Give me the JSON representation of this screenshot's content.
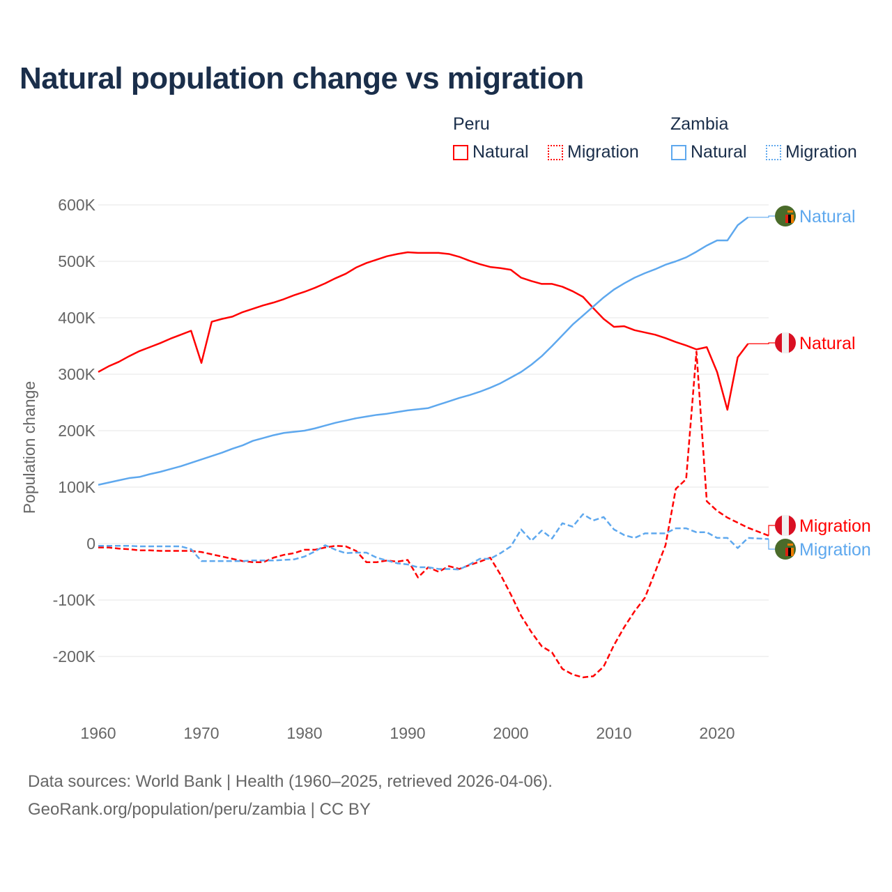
{
  "chart_data": {
    "type": "line",
    "title": "Natural population change vs migration",
    "ylabel": "Population change",
    "xlabel": "",
    "ylim": [
      -300000,
      600000
    ],
    "xlim": [
      1960,
      2025
    ],
    "grid": true,
    "y_ticks": [
      {
        "v": 600000,
        "label": "600K"
      },
      {
        "v": 500000,
        "label": "500K"
      },
      {
        "v": 400000,
        "label": "400K"
      },
      {
        "v": 300000,
        "label": "300K"
      },
      {
        "v": 200000,
        "label": "200K"
      },
      {
        "v": 100000,
        "label": "100K"
      },
      {
        "v": 0,
        "label": "0"
      },
      {
        "v": -100000,
        "label": "-100K"
      },
      {
        "v": -200000,
        "label": "-200K"
      }
    ],
    "x_ticks": [
      {
        "v": 1960,
        "label": "1960"
      },
      {
        "v": 1970,
        "label": "1970"
      },
      {
        "v": 1980,
        "label": "1980"
      },
      {
        "v": 1990,
        "label": "1990"
      },
      {
        "v": 2000,
        "label": "2000"
      },
      {
        "v": 2010,
        "label": "2010"
      },
      {
        "v": 2020,
        "label": "2020"
      }
    ],
    "legend_groups": [
      {
        "name": "Peru",
        "items": [
          "Natural",
          "Migration"
        ]
      },
      {
        "name": "Zambia",
        "items": [
          "Natural",
          "Migration"
        ]
      }
    ],
    "legend_placement": "top-right",
    "series": [
      {
        "name": "Peru Natural",
        "country": "Peru",
        "label": "Natural",
        "color": "#ff0000",
        "dash": false,
        "start": 1960,
        "values": [
          304,
          314,
          322,
          332,
          341,
          348,
          355,
          363,
          370,
          377,
          320,
          393,
          398,
          402,
          410,
          416,
          422,
          427,
          433,
          440,
          446,
          453,
          461,
          470,
          478,
          489,
          497,
          503,
          509,
          513,
          516,
          515,
          515,
          515,
          513,
          508,
          501,
          495,
          490,
          488,
          485,
          471,
          465,
          460,
          460,
          455,
          447,
          437,
          417,
          398,
          384,
          385,
          378,
          374,
          370,
          364,
          357,
          351,
          344,
          348,
          304,
          237,
          330,
          354
        ]
      },
      {
        "name": "Peru Migration",
        "country": "Peru",
        "label": "Migration",
        "color": "#ff0000",
        "dash": true,
        "start": 1960,
        "values": [
          -7,
          -7,
          -9,
          -10,
          -12,
          -12,
          -13,
          -13,
          -13,
          -13,
          -15,
          -19,
          -23,
          -27,
          -31,
          -33,
          -33,
          -25,
          -20,
          -17,
          -11,
          -11,
          -7,
          -4,
          -5,
          -13,
          -33,
          -33,
          -30,
          -32,
          -29,
          -60,
          -42,
          -50,
          -40,
          -45,
          -38,
          -32,
          -25,
          -55,
          -90,
          -128,
          -157,
          -182,
          -193,
          -222,
          -232,
          -237,
          -235,
          -218,
          -180,
          -148,
          -120,
          -96,
          -50,
          -3,
          97,
          114,
          340,
          75,
          58,
          46,
          37,
          28,
          21,
          14
        ]
      },
      {
        "name": "Zambia Natural",
        "country": "Zambia",
        "label": "Natural",
        "color": "#5ea8ee",
        "dash": false,
        "start": 1960,
        "values": [
          104,
          108,
          112,
          116,
          118,
          123,
          127,
          132,
          137,
          143,
          149,
          155,
          161,
          168,
          174,
          182,
          187,
          192,
          196,
          198,
          200,
          204,
          209,
          214,
          218,
          222,
          225,
          228,
          230,
          233,
          236,
          238,
          240,
          246,
          252,
          258,
          263,
          269,
          276,
          284,
          294,
          304,
          317,
          332,
          350,
          369,
          388,
          404,
          420,
          436,
          450,
          461,
          471,
          479,
          486,
          494,
          500,
          507,
          517,
          528,
          537,
          537,
          564,
          578
        ]
      },
      {
        "name": "Zambia Migration",
        "country": "Zambia",
        "label": "Migration",
        "color": "#5ea8ee",
        "dash": true,
        "start": 1960,
        "values": [
          -4,
          -4,
          -4,
          -4,
          -5,
          -5,
          -5,
          -5,
          -5,
          -10,
          -31,
          -31,
          -31,
          -31,
          -31,
          -30,
          -30,
          -30,
          -29,
          -28,
          -23,
          -14,
          -3,
          -11,
          -17,
          -16,
          -16,
          -25,
          -30,
          -35,
          -37,
          -42,
          -42,
          -45,
          -45,
          -46,
          -37,
          -27,
          -27,
          -17,
          -5,
          25,
          5,
          23,
          9,
          36,
          30,
          52,
          41,
          47,
          25,
          15,
          10,
          18,
          18,
          18,
          27,
          27,
          20,
          20,
          10,
          10,
          -8,
          10,
          9,
          8
        ]
      }
    ],
    "value_unit": "thousands"
  },
  "footer": {
    "line1": "Data sources: World Bank | Health (1960–2025, retrieved 2026-04-06).",
    "line2": "GeoRank.org/population/peru/zambia | CC BY"
  }
}
